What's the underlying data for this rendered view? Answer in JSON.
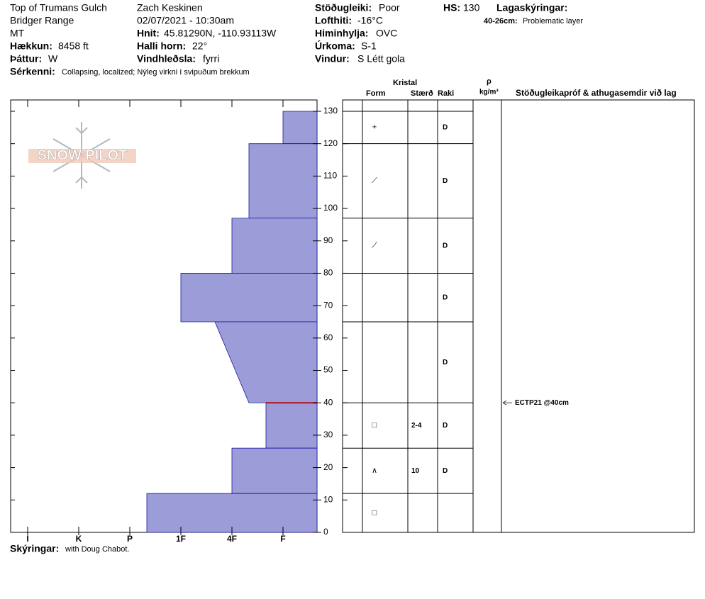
{
  "header": {
    "location": "Top of Trumans Gulch",
    "range": "Bridger Range",
    "state": "MT",
    "elevation_label": "Hækkun:",
    "elevation": "8458 ft",
    "aspect_label": "Þáttur:",
    "aspect": "W",
    "features_label": "Sérkenni:",
    "features": "Collapsing, localized;  Nýleg virkni í svipuðum brekkum",
    "observer": "Zach Keskinen",
    "datetime": "02/07/2021 - 10:30am",
    "coords_label": "Hnit:",
    "coords": "45.81290N, -110.93113W",
    "slope_label": "Halli horn:",
    "slope": "22°",
    "wind_loading_label": "Vindhleðsla:",
    "wind_loading": "fyrri",
    "stability_label": "Stöðugleiki:",
    "stability": "Poor",
    "air_temp_label": "Lofthiti:",
    "air_temp": "-16°C",
    "sky_label": "Himinhylja:",
    "sky": "OVC",
    "precip_label": "Úrkoma:",
    "precip": "S-1",
    "wind_label": "Vindur:",
    "wind": "S Létt gola",
    "hs_label": "HS:",
    "hs": "130",
    "legend_title": "Lagaskýringar:",
    "legend_range": "40-26cm:",
    "legend_text": "Problematic layer"
  },
  "logo": "SNOW PILOT",
  "table_header": {
    "crystal": "Kristal",
    "form": "Form",
    "size": "Stærð",
    "moisture": "Raki",
    "rho": "ρ",
    "density_unit": "kg/m³",
    "comments": "Stöðugleikapróf & athugasemdir við lag"
  },
  "chart_data": {
    "type": "hardness-profile",
    "color": "#9c9cd8",
    "xlim": [
      0,
      18
    ],
    "xticks": [
      {
        "value": 1,
        "label": "I"
      },
      {
        "value": 4,
        "label": "K"
      },
      {
        "value": 7,
        "label": "P"
      },
      {
        "value": 10,
        "label": "1F"
      },
      {
        "value": 13,
        "label": "4F"
      },
      {
        "value": 16,
        "label": "F"
      }
    ],
    "ylim": [
      0,
      133.5
    ],
    "yticks": [
      0,
      10,
      20,
      30,
      40,
      50,
      60,
      70,
      80,
      90,
      100,
      110,
      120,
      130
    ],
    "layers": [
      {
        "top": 130,
        "bottom": 120,
        "hardness_top": 16,
        "hardness_bottom": 16,
        "form": "+",
        "moisture": "D"
      },
      {
        "top": 120,
        "bottom": 97,
        "hardness_top": 14,
        "hardness_bottom": 14,
        "form": "⟋",
        "moisture": "D"
      },
      {
        "top": 97,
        "bottom": 80,
        "hardness_top": 13,
        "hardness_bottom": 13,
        "form": "⟋",
        "moisture": "D"
      },
      {
        "top": 80,
        "bottom": 65,
        "hardness_top": 10,
        "hardness_bottom": 10,
        "moisture": "D"
      },
      {
        "top": 65,
        "bottom": 40,
        "hardness_top": 12,
        "hardness_bottom": 14,
        "moisture": "D"
      },
      {
        "top": 40,
        "bottom": 26,
        "hardness_top": 15,
        "hardness_bottom": 15,
        "form": "□",
        "size": "2-4",
        "moisture": "D"
      },
      {
        "top": 26,
        "bottom": 12,
        "hardness_top": 13,
        "hardness_bottom": 13,
        "form": "∧",
        "size": "10",
        "moisture": "D"
      },
      {
        "top": 12,
        "bottom": 0,
        "hardness_top": 8,
        "hardness_bottom": 8,
        "form": "□"
      }
    ],
    "problematic": {
      "top": 40,
      "bottom": 26,
      "color": "#b01020"
    },
    "tests": [
      {
        "depth": 40,
        "label": "ECTP21 @40cm"
      }
    ]
  },
  "footer": {
    "notes_label": "Skýringar:",
    "notes": "with Doug Chabot."
  }
}
